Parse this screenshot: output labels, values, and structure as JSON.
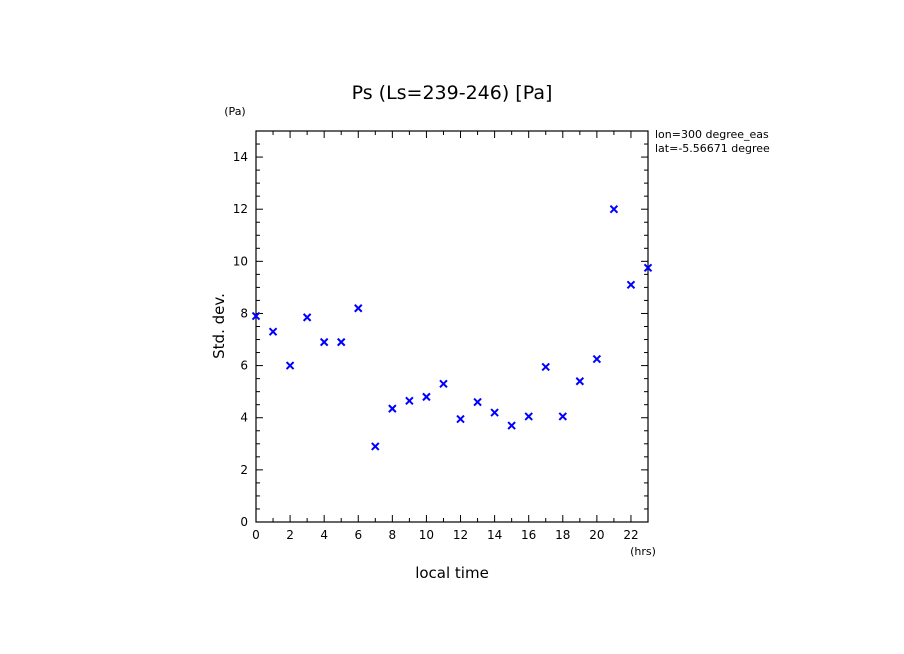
{
  "chart_data": {
    "type": "scatter",
    "title": "Ps (Ls=239-246) [Pa]",
    "xlabel": "local time",
    "ylabel": "Std. dev.",
    "x_unit": "(hrs)",
    "y_unit": "(Pa)",
    "xlim": [
      0,
      23
    ],
    "ylim": [
      0,
      15
    ],
    "x_ticks": [
      0,
      2,
      4,
      6,
      8,
      10,
      12,
      14,
      16,
      18,
      20,
      22
    ],
    "y_ticks": [
      0,
      2,
      4,
      6,
      8,
      10,
      12,
      14
    ],
    "grid": false,
    "annotations": [
      "lon=300 degree_eas",
      "lat=-5.56671 degree"
    ],
    "marker_color": "#0000ff",
    "x": [
      0,
      1,
      2,
      3,
      4,
      5,
      6,
      7,
      8,
      9,
      10,
      11,
      12,
      13,
      14,
      15,
      16,
      17,
      18,
      19,
      20,
      21,
      22,
      23
    ],
    "y": [
      7.9,
      7.3,
      6.0,
      7.85,
      6.9,
      6.9,
      8.2,
      2.9,
      4.35,
      4.65,
      4.8,
      5.3,
      3.95,
      4.6,
      4.2,
      3.7,
      4.05,
      5.95,
      4.05,
      5.4,
      6.25,
      12.0,
      9.1,
      9.75
    ]
  }
}
